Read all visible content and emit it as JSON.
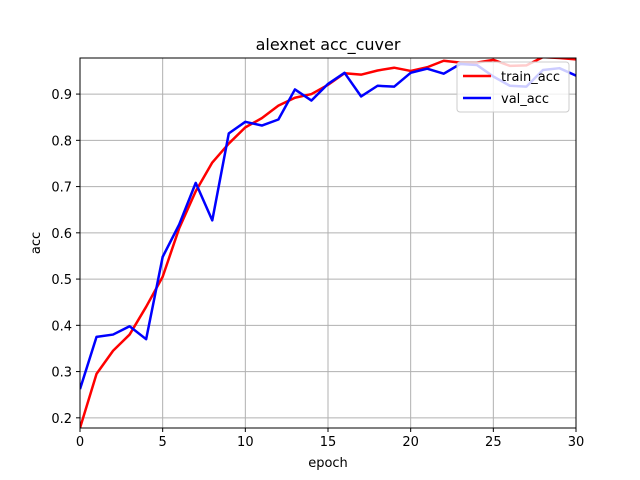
{
  "chart_data": {
    "type": "line",
    "title": "alexnet acc_cuver",
    "xlabel": "epoch",
    "ylabel": "acc",
    "xlim": [
      0,
      30
    ],
    "ylim": [
      0.178,
      0.978
    ],
    "xticks": [
      0,
      5,
      10,
      15,
      20,
      25,
      30
    ],
    "yticks": [
      0.2,
      0.3,
      0.4,
      0.5,
      0.6,
      0.7,
      0.8,
      0.9
    ],
    "grid": true,
    "legend_position": "top-right",
    "x": [
      0,
      1,
      2,
      3,
      4,
      5,
      6,
      7,
      8,
      9,
      10,
      11,
      12,
      13,
      14,
      15,
      16,
      17,
      18,
      19,
      20,
      21,
      22,
      23,
      24,
      25,
      26,
      27,
      28,
      29,
      30
    ],
    "series": [
      {
        "name": "train_acc",
        "color": "#ff0000",
        "values": [
          0.178,
          0.295,
          0.345,
          0.38,
          0.44,
          0.505,
          0.61,
          0.69,
          0.752,
          0.793,
          0.828,
          0.848,
          0.875,
          0.892,
          0.9,
          0.92,
          0.945,
          0.942,
          0.951,
          0.957,
          0.95,
          0.958,
          0.972,
          0.968,
          0.968,
          0.974,
          0.961,
          0.962,
          0.98,
          0.978,
          0.975
        ]
      },
      {
        "name": "val_acc",
        "color": "#0000ff",
        "values": [
          0.262,
          0.375,
          0.38,
          0.398,
          0.37,
          0.548,
          0.618,
          0.708,
          0.627,
          0.815,
          0.84,
          0.832,
          0.845,
          0.91,
          0.886,
          0.922,
          0.946,
          0.895,
          0.918,
          0.916,
          0.946,
          0.955,
          0.944,
          0.965,
          0.963,
          0.938,
          0.918,
          0.916,
          0.952,
          0.956,
          0.94
        ]
      }
    ]
  }
}
